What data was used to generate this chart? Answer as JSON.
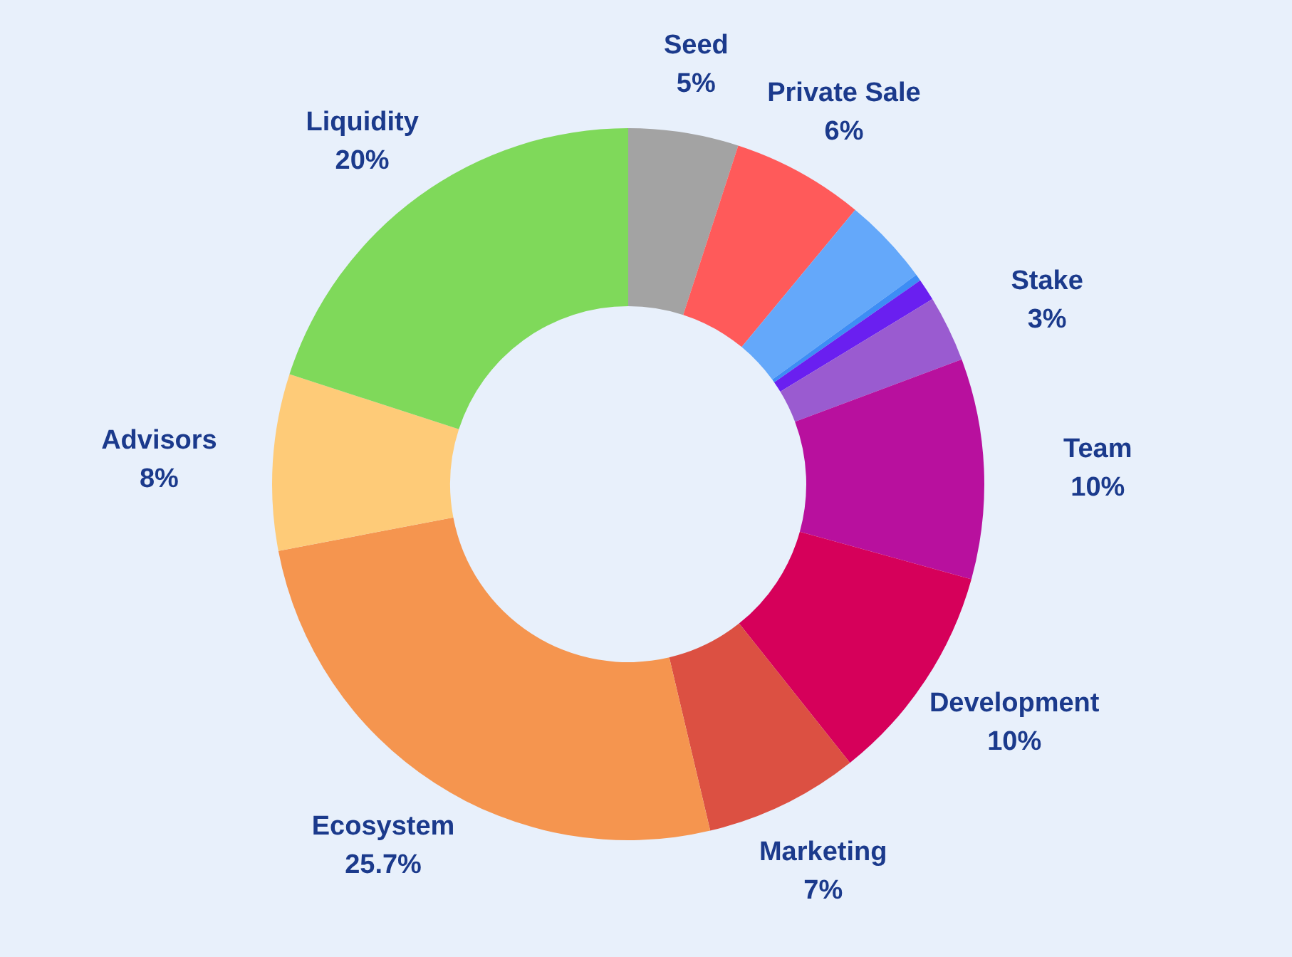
{
  "chart_data": {
    "type": "donut",
    "categories": [
      "Seed",
      "Private Sale",
      null,
      null,
      null,
      "Stake",
      "Team",
      "Development",
      "Marketing",
      "Ecosystem",
      "Advisors",
      "Liquidity"
    ],
    "values": [
      5,
      6,
      4,
      0.3,
      1,
      3,
      10,
      10,
      7,
      25.7,
      8,
      20
    ],
    "value_labels": [
      "5%",
      "6%",
      null,
      null,
      null,
      "3%",
      "10%",
      "10%",
      "7%",
      "25.7%",
      "8%",
      "20%"
    ],
    "colors": [
      "#a3a3a3",
      "#ff5a5a",
      "#64a8fa",
      "#3d8df5",
      "#6a1ff0",
      "#9a5bd0",
      "#b8109e",
      "#d6005a",
      "#dc5042",
      "#f5954f",
      "#fecb78",
      "#7fd95a"
    ]
  }
}
